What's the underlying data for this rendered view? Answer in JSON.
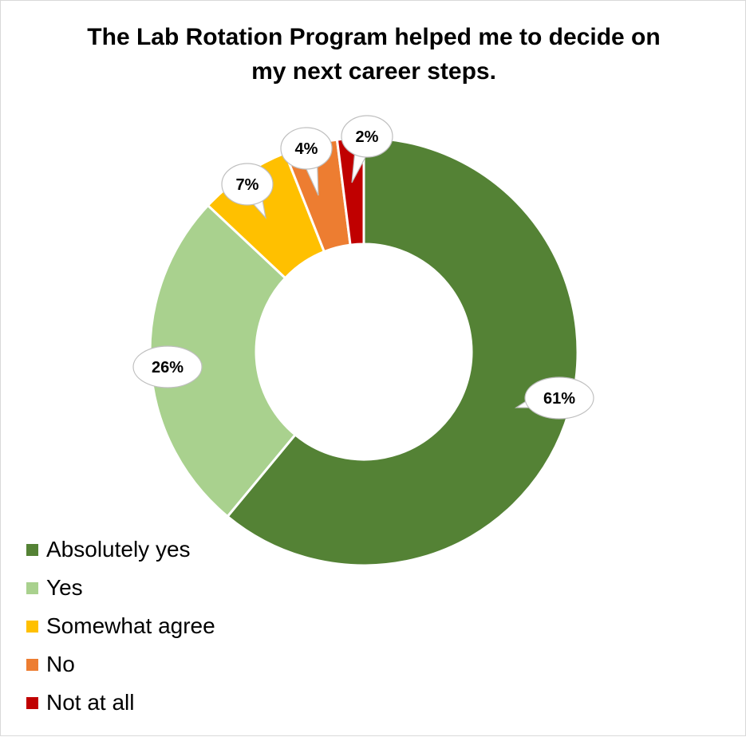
{
  "chart_data": {
    "type": "pie",
    "title": "The Lab Rotation Program helped me to decide on my next career steps.",
    "title_lines": [
      "The Lab Rotation Program helped me to decide on",
      "my next career steps."
    ],
    "categories": [
      "Absolutely yes",
      "Yes",
      "Somewhat agree",
      "No",
      "Not at all"
    ],
    "values": [
      61,
      26,
      7,
      4,
      2
    ],
    "value_labels": [
      "61%",
      "26%",
      "7%",
      "4%",
      "2%"
    ],
    "colors": [
      "#548235",
      "#A9D18E",
      "#FFC000",
      "#ED7D31",
      "#C00000"
    ],
    "donut": true,
    "legend_position": "bottom-left"
  }
}
